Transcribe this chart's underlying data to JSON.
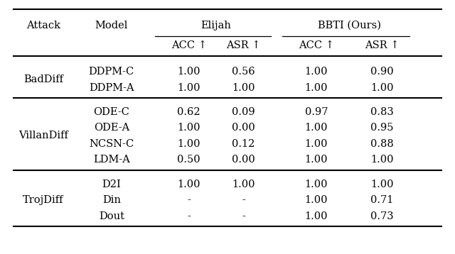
{
  "col_headers_level2": [
    "Attack",
    "Model",
    "ACC ↑",
    "ASR ↑",
    "ACC ↑",
    "ASR ↑"
  ],
  "groups": [
    {
      "attack": "BadDiff",
      "rows": [
        [
          "DDPM-C",
          "1.00",
          "0.56",
          "1.00",
          "0.90"
        ],
        [
          "DDPM-A",
          "1.00",
          "1.00",
          "1.00",
          "1.00"
        ]
      ]
    },
    {
      "attack": "VillanDiff",
      "rows": [
        [
          "ODE-C",
          "0.62",
          "0.09",
          "0.97",
          "0.83"
        ],
        [
          "ODE-A",
          "1.00",
          "0.00",
          "1.00",
          "0.95"
        ],
        [
          "NCSN-C",
          "1.00",
          "0.12",
          "1.00",
          "0.88"
        ],
        [
          "LDM-A",
          "0.50",
          "0.00",
          "1.00",
          "1.00"
        ]
      ]
    },
    {
      "attack": "TrojDiff",
      "rows": [
        [
          "D2I",
          "1.00",
          "1.00",
          "1.00",
          "1.00"
        ],
        [
          "Din",
          "-",
          "-",
          "1.00",
          "0.71"
        ],
        [
          "Dout",
          "-",
          "-",
          "1.00",
          "0.73"
        ]
      ]
    }
  ],
  "background_color": "#ffffff",
  "text_color": "#000000",
  "fontsize_header": 10.5,
  "fontsize_data": 10.5
}
